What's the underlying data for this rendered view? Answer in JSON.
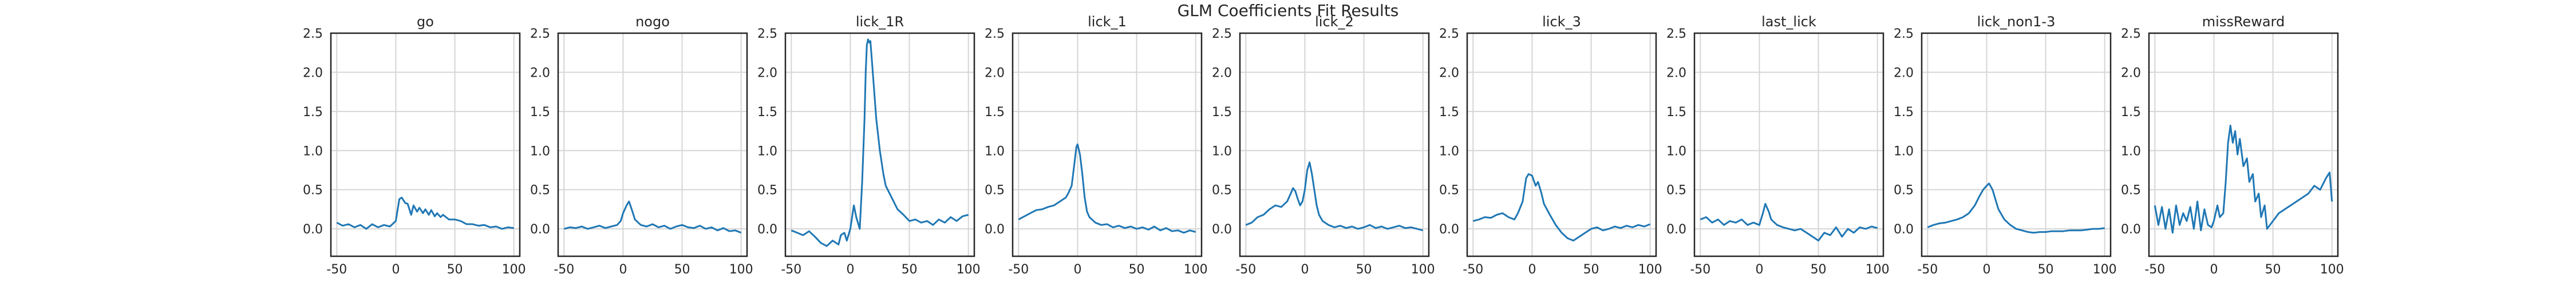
{
  "figure": {
    "title": "GLM Coefficients Fit Results"
  },
  "style": {
    "line_color": "#1f77b4",
    "grid": true,
    "frame_color": "#262626"
  },
  "chart_data": [
    {
      "type": "line",
      "title": "go",
      "xlim": [
        -55,
        105
      ],
      "ylim": [
        -0.35,
        2.5
      ],
      "xticks": [
        -50,
        0,
        50,
        100
      ],
      "yticks": [
        0.0,
        0.5,
        1.0,
        1.5,
        2.0,
        2.5
      ],
      "series": [
        {
          "x": [
            -50,
            -45,
            -40,
            -35,
            -30,
            -25,
            -20,
            -15,
            -10,
            -5,
            0,
            3,
            5,
            8,
            10,
            13,
            15,
            18,
            20,
            23,
            25,
            28,
            30,
            33,
            35,
            38,
            40,
            45,
            50,
            55,
            60,
            65,
            70,
            75,
            80,
            85,
            90,
            95,
            100
          ],
          "y": [
            0.08,
            0.04,
            0.06,
            0.02,
            0.05,
            0.0,
            0.06,
            0.02,
            0.05,
            0.03,
            0.1,
            0.38,
            0.4,
            0.33,
            0.32,
            0.18,
            0.3,
            0.22,
            0.27,
            0.2,
            0.25,
            0.18,
            0.24,
            0.16,
            0.2,
            0.15,
            0.18,
            0.12,
            0.12,
            0.1,
            0.06,
            0.06,
            0.04,
            0.05,
            0.02,
            0.03,
            0.0,
            0.02,
            0.01
          ]
        }
      ]
    },
    {
      "type": "line",
      "title": "nogo",
      "xlim": [
        -55,
        105
      ],
      "ylim": [
        -0.35,
        2.5
      ],
      "xticks": [
        -50,
        0,
        50,
        100
      ],
      "yticks": [
        0.0,
        0.5,
        1.0,
        1.5,
        2.0,
        2.5
      ],
      "series": [
        {
          "x": [
            -50,
            -45,
            -40,
            -35,
            -30,
            -25,
            -20,
            -15,
            -10,
            -5,
            -2,
            0,
            3,
            5,
            8,
            10,
            15,
            20,
            25,
            30,
            35,
            40,
            45,
            50,
            55,
            60,
            65,
            70,
            75,
            80,
            85,
            90,
            95,
            100
          ],
          "y": [
            0.0,
            0.02,
            0.01,
            0.03,
            0.0,
            0.02,
            0.04,
            0.01,
            0.03,
            0.05,
            0.1,
            0.2,
            0.3,
            0.35,
            0.22,
            0.12,
            0.05,
            0.03,
            0.06,
            0.02,
            0.04,
            0.0,
            0.03,
            0.05,
            0.02,
            0.01,
            0.04,
            0.0,
            0.02,
            -0.02,
            0.01,
            -0.03,
            -0.02,
            -0.05
          ]
        }
      ]
    },
    {
      "type": "line",
      "title": "lick_1R",
      "xlim": [
        -55,
        105
      ],
      "ylim": [
        -0.35,
        2.5
      ],
      "xticks": [
        -50,
        0,
        50,
        100
      ],
      "yticks": [
        0.0,
        0.5,
        1.0,
        1.5,
        2.0,
        2.5
      ],
      "series": [
        {
          "x": [
            -50,
            -45,
            -40,
            -35,
            -30,
            -25,
            -20,
            -15,
            -10,
            -8,
            -5,
            -3,
            0,
            3,
            5,
            8,
            10,
            12,
            13,
            14,
            15,
            16,
            17,
            18,
            20,
            22,
            25,
            28,
            30,
            35,
            40,
            45,
            50,
            55,
            60,
            65,
            70,
            75,
            80,
            85,
            90,
            95,
            100
          ],
          "y": [
            -0.02,
            -0.05,
            -0.08,
            -0.03,
            -0.1,
            -0.18,
            -0.22,
            -0.15,
            -0.2,
            -0.08,
            -0.05,
            -0.15,
            0.0,
            0.3,
            0.15,
            0.0,
            0.6,
            1.4,
            2.0,
            2.35,
            2.42,
            2.38,
            2.4,
            2.2,
            1.8,
            1.4,
            1.0,
            0.7,
            0.55,
            0.4,
            0.25,
            0.18,
            0.1,
            0.12,
            0.08,
            0.1,
            0.05,
            0.12,
            0.08,
            0.15,
            0.1,
            0.16,
            0.18
          ]
        }
      ]
    },
    {
      "type": "line",
      "title": "lick_1",
      "xlim": [
        -55,
        105
      ],
      "ylim": [
        -0.35,
        2.5
      ],
      "xticks": [
        -50,
        0,
        50,
        100
      ],
      "yticks": [
        0.0,
        0.5,
        1.0,
        1.5,
        2.0,
        2.5
      ],
      "series": [
        {
          "x": [
            -50,
            -45,
            -40,
            -35,
            -30,
            -25,
            -20,
            -15,
            -10,
            -8,
            -5,
            -3,
            -1,
            0,
            2,
            4,
            6,
            8,
            10,
            15,
            20,
            25,
            30,
            35,
            40,
            45,
            50,
            55,
            60,
            65,
            70,
            75,
            80,
            85,
            90,
            95,
            100
          ],
          "y": [
            0.12,
            0.16,
            0.2,
            0.24,
            0.25,
            0.28,
            0.3,
            0.35,
            0.4,
            0.45,
            0.55,
            0.8,
            1.05,
            1.08,
            0.95,
            0.7,
            0.4,
            0.22,
            0.15,
            0.08,
            0.05,
            0.06,
            0.02,
            0.04,
            0.01,
            0.03,
            0.0,
            0.02,
            -0.01,
            0.03,
            -0.02,
            0.01,
            -0.03,
            -0.02,
            -0.05,
            -0.02,
            -0.04
          ]
        }
      ]
    },
    {
      "type": "line",
      "title": "lick_2",
      "xlim": [
        -55,
        105
      ],
      "ylim": [
        -0.35,
        2.5
      ],
      "xticks": [
        -50,
        0,
        50,
        100
      ],
      "yticks": [
        0.0,
        0.5,
        1.0,
        1.5,
        2.0,
        2.5
      ],
      "series": [
        {
          "x": [
            -50,
            -45,
            -40,
            -35,
            -30,
            -25,
            -20,
            -15,
            -12,
            -10,
            -8,
            -6,
            -4,
            -2,
            0,
            2,
            4,
            6,
            8,
            10,
            12,
            15,
            20,
            25,
            30,
            35,
            40,
            45,
            50,
            55,
            60,
            65,
            70,
            75,
            80,
            85,
            90,
            95,
            100
          ],
          "y": [
            0.05,
            0.08,
            0.15,
            0.18,
            0.25,
            0.3,
            0.28,
            0.35,
            0.45,
            0.52,
            0.48,
            0.38,
            0.3,
            0.35,
            0.5,
            0.75,
            0.85,
            0.7,
            0.5,
            0.3,
            0.18,
            0.1,
            0.05,
            0.02,
            0.04,
            0.01,
            0.03,
            0.0,
            0.02,
            0.05,
            0.01,
            0.03,
            0.0,
            0.02,
            0.04,
            0.01,
            0.02,
            0.0,
            -0.02
          ]
        }
      ]
    },
    {
      "type": "line",
      "title": "lick_3",
      "xlim": [
        -55,
        105
      ],
      "ylim": [
        -0.35,
        2.5
      ],
      "xticks": [
        -50,
        0,
        50,
        100
      ],
      "yticks": [
        0.0,
        0.5,
        1.0,
        1.5,
        2.0,
        2.5
      ],
      "series": [
        {
          "x": [
            -50,
            -45,
            -40,
            -35,
            -30,
            -25,
            -20,
            -15,
            -12,
            -8,
            -5,
            -3,
            0,
            3,
            5,
            8,
            10,
            15,
            20,
            25,
            30,
            35,
            40,
            45,
            50,
            55,
            60,
            65,
            70,
            75,
            80,
            85,
            90,
            95,
            100
          ],
          "y": [
            0.1,
            0.12,
            0.15,
            0.14,
            0.18,
            0.2,
            0.15,
            0.12,
            0.2,
            0.35,
            0.65,
            0.7,
            0.68,
            0.55,
            0.6,
            0.45,
            0.32,
            0.18,
            0.05,
            -0.05,
            -0.12,
            -0.15,
            -0.1,
            -0.05,
            0.0,
            0.02,
            -0.02,
            0.0,
            0.03,
            0.01,
            0.04,
            0.02,
            0.05,
            0.03,
            0.06
          ]
        }
      ]
    },
    {
      "type": "line",
      "title": "last_lick",
      "xlim": [
        -55,
        105
      ],
      "ylim": [
        -0.35,
        2.5
      ],
      "xticks": [
        -50,
        0,
        50,
        100
      ],
      "yticks": [
        0.0,
        0.5,
        1.0,
        1.5,
        2.0,
        2.5
      ],
      "series": [
        {
          "x": [
            -50,
            -45,
            -40,
            -35,
            -30,
            -25,
            -20,
            -15,
            -10,
            -5,
            0,
            3,
            5,
            8,
            10,
            15,
            20,
            25,
            30,
            35,
            40,
            45,
            50,
            55,
            60,
            65,
            70,
            75,
            80,
            85,
            90,
            95,
            100
          ],
          "y": [
            0.12,
            0.15,
            0.08,
            0.12,
            0.05,
            0.1,
            0.08,
            0.12,
            0.05,
            0.08,
            0.05,
            0.2,
            0.32,
            0.22,
            0.12,
            0.05,
            0.02,
            0.0,
            -0.02,
            0.0,
            -0.05,
            -0.1,
            -0.15,
            -0.05,
            -0.08,
            0.02,
            -0.1,
            0.0,
            -0.05,
            0.02,
            0.0,
            0.03,
            0.01
          ]
        }
      ]
    },
    {
      "type": "line",
      "title": "lick_non1-3",
      "xlim": [
        -55,
        105
      ],
      "ylim": [
        -0.35,
        2.5
      ],
      "xticks": [
        -50,
        0,
        50,
        100
      ],
      "yticks": [
        0.0,
        0.5,
        1.0,
        1.5,
        2.0,
        2.5
      ],
      "series": [
        {
          "x": [
            -50,
            -45,
            -40,
            -35,
            -30,
            -25,
            -20,
            -15,
            -10,
            -6,
            -3,
            0,
            2,
            5,
            8,
            10,
            15,
            20,
            25,
            30,
            35,
            40,
            45,
            50,
            55,
            60,
            65,
            70,
            75,
            80,
            85,
            90,
            95,
            100
          ],
          "y": [
            0.02,
            0.05,
            0.07,
            0.08,
            0.1,
            0.12,
            0.15,
            0.2,
            0.3,
            0.42,
            0.5,
            0.55,
            0.58,
            0.5,
            0.35,
            0.25,
            0.12,
            0.05,
            0.0,
            -0.02,
            -0.04,
            -0.05,
            -0.04,
            -0.04,
            -0.03,
            -0.03,
            -0.03,
            -0.02,
            -0.02,
            -0.02,
            -0.01,
            0.0,
            0.0,
            0.01
          ]
        }
      ]
    },
    {
      "type": "line",
      "title": "missReward",
      "xlim": [
        -55,
        105
      ],
      "ylim": [
        -0.35,
        2.5
      ],
      "xticks": [
        -50,
        0,
        50,
        100
      ],
      "yticks": [
        0.0,
        0.5,
        1.0,
        1.5,
        2.0,
        2.5
      ],
      "series": [
        {
          "x": [
            -50,
            -47,
            -44,
            -41,
            -38,
            -35,
            -32,
            -29,
            -26,
            -23,
            -20,
            -17,
            -14,
            -11,
            -8,
            -5,
            -2,
            0,
            3,
            5,
            8,
            10,
            12,
            14,
            16,
            18,
            20,
            22,
            25,
            28,
            30,
            33,
            35,
            38,
            40,
            43,
            45,
            50,
            55,
            60,
            65,
            70,
            75,
            80,
            85,
            90,
            95,
            98,
            100
          ],
          "y": [
            0.3,
            0.05,
            0.28,
            0.0,
            0.25,
            -0.05,
            0.3,
            0.05,
            0.2,
            0.1,
            0.28,
            0.0,
            0.35,
            -0.02,
            0.25,
            0.05,
            0.02,
            0.1,
            0.3,
            0.15,
            0.2,
            0.6,
            1.1,
            1.32,
            1.1,
            1.25,
            0.95,
            1.15,
            0.8,
            0.9,
            0.6,
            0.7,
            0.35,
            0.45,
            0.15,
            0.3,
            0.0,
            0.1,
            0.2,
            0.25,
            0.3,
            0.35,
            0.4,
            0.45,
            0.55,
            0.5,
            0.65,
            0.72,
            0.35
          ]
        }
      ]
    }
  ]
}
